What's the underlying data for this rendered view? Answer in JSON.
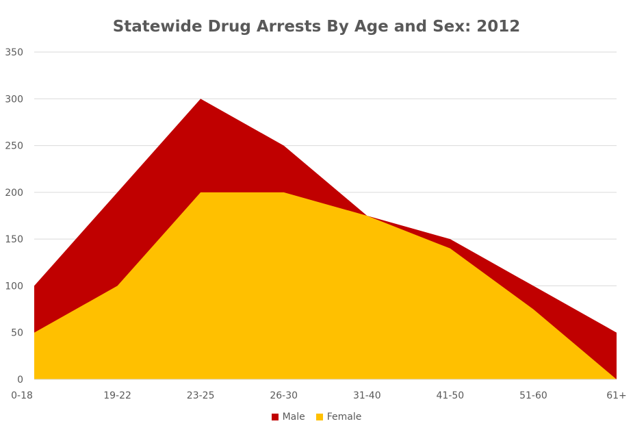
{
  "chart_data": {
    "type": "area",
    "title": "Statewide Drug Arrests By Age and Sex:  2012",
    "xlabel": "",
    "ylabel": "",
    "categories": [
      "0-18",
      "19-22",
      "23-25",
      "26-30",
      "31-40",
      "41-50",
      "51-60",
      "61+"
    ],
    "ylim": [
      0,
      350
    ],
    "yticks": [
      0,
      50,
      100,
      150,
      200,
      250,
      300,
      350
    ],
    "grid": true,
    "legend": "bottom",
    "series": [
      {
        "name": "Male",
        "color": "#C00000",
        "values": [
          100,
          200,
          300,
          250,
          175,
          150,
          100,
          50
        ]
      },
      {
        "name": "Female",
        "color": "#FFC000",
        "values": [
          50,
          100,
          200,
          200,
          175,
          140,
          75,
          0
        ]
      }
    ]
  }
}
